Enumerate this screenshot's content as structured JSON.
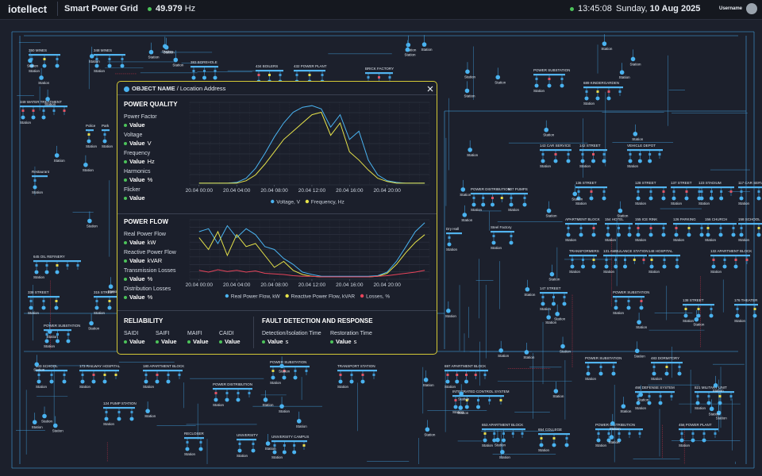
{
  "header": {
    "brand": "iotellect",
    "app": "Smart Power Grid",
    "frequency": "49.979",
    "frequency_unit": "Hz",
    "time": "13:45:08",
    "weekday": "Sunday,",
    "date": "10 Aug 2025",
    "user": "Username"
  },
  "panel": {
    "title": "OBJECT NAME",
    "separator": "/",
    "subtitle": "Location Address",
    "power_quality": {
      "title": "POWER QUALITY",
      "items": [
        {
          "label": "Power Factor",
          "value": "Value"
        },
        {
          "label": "Voltage",
          "value": "Value",
          "unit": "V"
        },
        {
          "label": "Frequency",
          "value": "Value",
          "unit": "Hz"
        },
        {
          "label": "Harmonics",
          "value": "Value",
          "unit": "%"
        },
        {
          "label": "Flicker",
          "value": "Value"
        }
      ],
      "chart": {
        "type": "line",
        "x": [
          0,
          1,
          2,
          3,
          4,
          5,
          6,
          7,
          8,
          9,
          10,
          11,
          12,
          13,
          14,
          15,
          16,
          17,
          18,
          19,
          20,
          21,
          22,
          23,
          24
        ],
        "xlim": [
          -1,
          24.5
        ],
        "ylim": [
          0,
          100
        ],
        "grid": true,
        "xticks": [
          {
            "value": 0,
            "label": "20.04 00:00"
          },
          {
            "value": 4,
            "label": "20.04 04:00"
          },
          {
            "value": 8,
            "label": "20.04 08:00"
          },
          {
            "value": 12,
            "label": "20.04 12:00"
          },
          {
            "value": 16,
            "label": "20.04 16:00"
          },
          {
            "value": 20,
            "label": "20.04 20:00"
          }
        ],
        "series": [
          {
            "name": "Voltage, V",
            "color": "#4ab3f0",
            "values": [
              2,
              2,
              2,
              2,
              3,
              8,
              20,
              38,
              58,
              75,
              88,
              94,
              96,
              92,
              70,
              85,
              55,
              65,
              30,
              12,
              5,
              3,
              2,
              2,
              2
            ]
          },
          {
            "name": "Frequency, Hz",
            "color": "#e6e34a",
            "values": [
              2,
              2,
              2,
              2,
              2,
              5,
              12,
              25,
              40,
              55,
              65,
              75,
              85,
              88,
              60,
              75,
              40,
              30,
              18,
              8,
              4,
              2,
              2,
              2,
              2
            ]
          }
        ]
      }
    },
    "power_flow": {
      "title": "POWER FLOW",
      "items": [
        {
          "label": "Real Power Flow",
          "value": "Value",
          "unit": "kW"
        },
        {
          "label": "Reactive Power Flow",
          "value": "Value",
          "unit": "kVAR"
        },
        {
          "label": "Transmission Losses",
          "value": "Value",
          "unit": "%"
        },
        {
          "label": "Distribution Losses",
          "value": "Value",
          "unit": "%"
        }
      ],
      "chart": {
        "type": "line",
        "x": [
          0,
          1,
          2,
          3,
          4,
          5,
          6,
          7,
          8,
          9,
          10,
          11,
          12,
          13,
          14,
          15,
          16,
          17,
          18,
          19,
          20,
          21,
          22,
          23,
          24
        ],
        "xlim": [
          -1,
          24.5
        ],
        "ylim": [
          0,
          100
        ],
        "grid": true,
        "xticks": [
          {
            "value": 0,
            "label": "20.04 00:00"
          },
          {
            "value": 4,
            "label": "20.04 04:00"
          },
          {
            "value": 8,
            "label": "20.04 08:00"
          },
          {
            "value": 12,
            "label": "20.04 12:00"
          },
          {
            "value": 16,
            "label": "20.04 16:00"
          },
          {
            "value": 20,
            "label": "20.04 20:00"
          }
        ],
        "series": [
          {
            "name": "Real Power Flow, kW",
            "color": "#4ab3f0",
            "values": [
              80,
              85,
              60,
              90,
              70,
              85,
              75,
              55,
              50,
              35,
              25,
              12,
              8,
              5,
              5,
              5,
              5,
              5,
              5,
              6,
              12,
              30,
              55,
              80,
              95
            ]
          },
          {
            "name": "Reactive Power Flow, kVAR",
            "color": "#e6e34a",
            "values": [
              70,
              50,
              80,
              40,
              75,
              55,
              60,
              40,
              20,
              30,
              15,
              8,
              5,
              4,
              4,
              4,
              4,
              4,
              4,
              5,
              10,
              25,
              45,
              62,
              75
            ]
          },
          {
            "name": "Losses, %",
            "color": "#e8445a",
            "values": [
              15,
              12,
              16,
              13,
              15,
              12,
              14,
              10,
              9,
              8,
              6,
              5,
              5,
              4,
              4,
              4,
              4,
              4,
              4,
              5,
              6,
              8,
              10,
              12,
              15
            ]
          }
        ]
      }
    },
    "reliability": {
      "title": "RELIABILITY",
      "items": [
        {
          "label": "SAIDI",
          "value": "Value"
        },
        {
          "label": "SAIFI",
          "value": "Value"
        },
        {
          "label": "MAIFI",
          "value": "Value"
        },
        {
          "label": "CAIDI",
          "value": "Value"
        }
      ]
    },
    "fault": {
      "title": "FAULT DETECTION AND RESPONSE",
      "items": [
        {
          "label": "Detection/Isolation Time",
          "value": "Value",
          "unit": "s"
        },
        {
          "label": "Restoration Time",
          "value": "Value",
          "unit": "s"
        }
      ]
    }
  },
  "diagram": {
    "station": "Station",
    "labels": [
      "350 MINES",
      "348 MINES",
      "349 WATER TREATMENT",
      "Police",
      "Park",
      "Restaurant",
      "645 OIL REFINERY",
      "338 STREET",
      "315 STREET",
      "POWER SUBSTATION",
      "103 SCHOOL",
      "173 RAILWAY HOSPITAL",
      "124 PUMP STATION",
      "180 APARTMENT BLOCK",
      "POWER DISTRIBUTION",
      "POWER SUBSTATION",
      "TRANSPORT STATION",
      "UNIVERSITY",
      "UNIVERSITY CAMPUS",
      "RECLOSER",
      "697 APARTMENT BLOCK",
      "INTEGRATED CONTROL SYSTEM",
      "653 APARTMENT BLOCK",
      "654 COLLEGE",
      "POWER DISTRIBUTION",
      "466 DEFENSE SYSTEM",
      "821 MILITARY UNIT",
      "456 POWER PLANT",
      "483 DORMITORY",
      "POWER SUBSTATION",
      "POWER DISTRIBUTION",
      "143 CAR SERVICE",
      "142 STREET",
      "VEHICLE DEPOT",
      "136 STREET",
      "128 STREET",
      "137 STREET",
      "123 STADIUM",
      "117 CAR SERVICE",
      "APARTMENT BLOCK",
      "154 HOTEL",
      "155 ICE RINK",
      "126 PARKING",
      "156 CHURCH",
      "158 SCHOOL",
      "TRANSFORMERS",
      "131 AMBULANCE STATION",
      "148 HOSPITAL",
      "132 APARTMENT BLOCK",
      "147 STREET",
      "POWER SUBSTATION",
      "138 STREET",
      "176 THEATER",
      "434 BOILERS",
      "432 POWER PLANT",
      "BRICK FACTORY",
      "383 BOREHOLE",
      "POWER SUBSTATION",
      "689 KINDERGARDEN",
      "Steel Factory",
      "Dry Hall",
      "507 PUMPS"
    ]
  }
}
